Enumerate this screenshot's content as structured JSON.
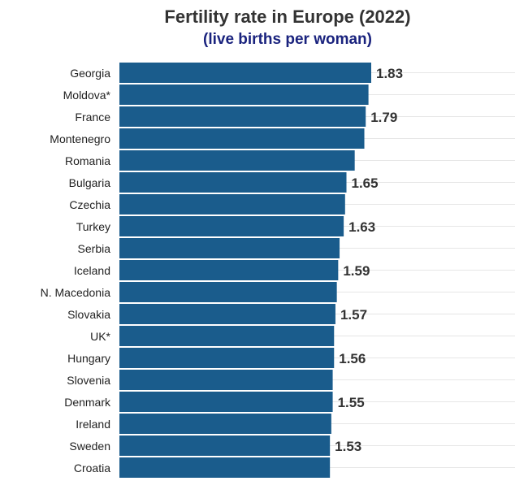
{
  "chart_data": {
    "type": "bar",
    "orientation": "horizontal",
    "title": "Fertility rate in Europe (2022)",
    "subtitle": "(live births per woman)",
    "categories": [
      "Georgia",
      "Moldova*",
      "France",
      "Montenegro",
      "Romania",
      "Bulgaria",
      "Czechia",
      "Turkey",
      "Serbia",
      "Iceland",
      "N. Macedonia",
      "Slovakia",
      "UK*",
      "Hungary",
      "Slovenia",
      "Denmark",
      "Ireland",
      "Sweden",
      "Croatia"
    ],
    "values": [
      1.83,
      1.81,
      1.79,
      1.78,
      1.71,
      1.65,
      1.64,
      1.63,
      1.6,
      1.59,
      1.58,
      1.57,
      1.56,
      1.56,
      1.55,
      1.55,
      1.54,
      1.53,
      1.53
    ],
    "data_labels": [
      "1.83",
      "",
      "1.79",
      "",
      "",
      "1.65",
      "",
      "1.63",
      "",
      "1.59",
      "",
      "1.57",
      "",
      "1.56",
      "",
      "1.55",
      "",
      "1.53",
      ""
    ],
    "xlim": [
      0,
      2.0
    ],
    "grid": true,
    "bar_color": "#1a5c8c"
  }
}
